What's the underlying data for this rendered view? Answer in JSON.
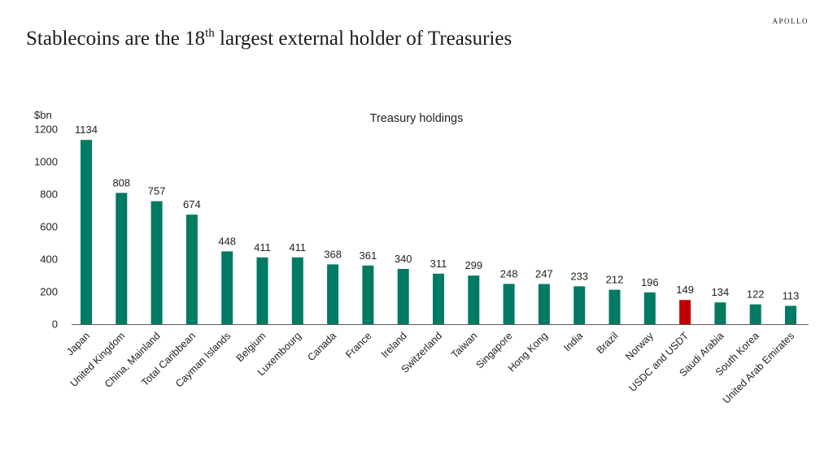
{
  "brand": "APOLLO",
  "slide_title": {
    "pre": "Stablecoins are the 18",
    "sup": "th",
    "post": " largest external holder of Treasuries"
  },
  "colors": {
    "bar": "#007a63",
    "highlight": "#c00000",
    "axis": "#595959",
    "text": "#222222"
  },
  "chart_data": {
    "type": "bar",
    "title": "Treasury holdings",
    "ylabel": "$bn",
    "xlabel": "",
    "ylim": [
      0,
      1200
    ],
    "yticks": [
      0,
      200,
      400,
      600,
      800,
      1000,
      1200
    ],
    "grid": false,
    "highlight_category": "USDC and USDT",
    "categories": [
      "Japan",
      "United Kingdom",
      "China, Mainland",
      "Total Caribbean",
      "Cayman Islands",
      "Belgium",
      "Luxembourg",
      "Canada",
      "France",
      "Ireland",
      "Switzerland",
      "Taiwan",
      "Singapore",
      "Hong Kong",
      "India",
      "Brazil",
      "Norway",
      "USDC and USDT",
      "Saudi Arabia",
      "South Korea",
      "United Arab Emirates"
    ],
    "values": [
      1134,
      808,
      757,
      674,
      448,
      411,
      411,
      368,
      361,
      340,
      311,
      299,
      248,
      247,
      233,
      212,
      196,
      149,
      134,
      122,
      113
    ]
  }
}
